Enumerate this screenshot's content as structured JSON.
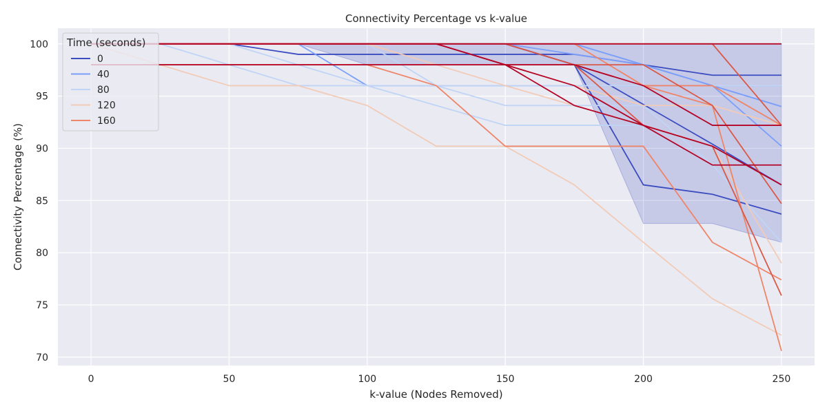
{
  "chart_data": {
    "type": "line",
    "title": "Connectivity Percentage vs k-value",
    "xlabel": "k-value (Nodes Removed)",
    "ylabel": "Connectivity Percentage (%)",
    "xlim": [
      -12,
      262
    ],
    "ylim": [
      69.2,
      101.5
    ],
    "xticks": [
      0,
      50,
      100,
      150,
      200,
      250
    ],
    "yticks": [
      70,
      75,
      80,
      85,
      90,
      95,
      100
    ],
    "grid": true,
    "background": "#eaeaf2",
    "legend": {
      "title": "Time (seconds)",
      "position": "top-left",
      "entries": [
        {
          "label": "0",
          "color": "#3b4cc0"
        },
        {
          "label": "40",
          "color": "#7b9ff9"
        },
        {
          "label": "80",
          "color": "#c0d4f5"
        },
        {
          "label": "120",
          "color": "#f2cbb7"
        },
        {
          "label": "160",
          "color": "#ee8468"
        }
      ]
    },
    "band": {
      "color": "#3b4cc0",
      "opacity": 0.2,
      "upper": [
        [
          0,
          100
        ],
        [
          25,
          100
        ],
        [
          50,
          100
        ],
        [
          75,
          100
        ],
        [
          100,
          100
        ],
        [
          125,
          100
        ],
        [
          150,
          100
        ],
        [
          175,
          100
        ],
        [
          200,
          100
        ],
        [
          225,
          100
        ],
        [
          250,
          100
        ]
      ],
      "lower": [
        [
          0,
          100
        ],
        [
          25,
          100
        ],
        [
          50,
          100
        ],
        [
          75,
          100
        ],
        [
          100,
          98
        ],
        [
          125,
          98
        ],
        [
          150,
          98
        ],
        [
          175,
          98
        ],
        [
          200,
          82.8
        ],
        [
          225,
          82.8
        ],
        [
          250,
          81
        ]
      ]
    },
    "x": [
      0,
      25,
      50,
      75,
      100,
      125,
      150,
      175,
      200,
      225,
      250
    ],
    "series": [
      {
        "color": "#3b4cc0",
        "values": [
          100,
          100,
          100,
          99,
          99,
          99,
          99,
          99,
          98,
          97,
          97
        ]
      },
      {
        "color": "#3b4cc0",
        "values": [
          100,
          100,
          100,
          100,
          100,
          100,
          100,
          98,
          94.2,
          90.4,
          86.5
        ]
      },
      {
        "color": "#3b4cc0",
        "values": [
          100,
          100,
          100,
          100,
          100,
          100,
          100,
          98,
          86.5,
          85.6,
          83.7
        ]
      },
      {
        "color": "#7b9ff9",
        "values": [
          100,
          100,
          100,
          100,
          100,
          100,
          100,
          99,
          98,
          96,
          96
        ]
      },
      {
        "color": "#7b9ff9",
        "values": [
          100,
          100,
          100,
          100,
          100,
          100,
          100,
          100,
          98,
          96,
          94
        ]
      },
      {
        "color": "#7b9ff9",
        "values": [
          100,
          100,
          100,
          100,
          100,
          100,
          100,
          100,
          98,
          96,
          90.2
        ]
      },
      {
        "color": "#7b9ff9",
        "values": [
          100,
          100,
          100,
          100,
          96,
          96,
          96,
          96,
          96,
          96,
          94
        ]
      },
      {
        "color": "#c0d4f5",
        "values": [
          100,
          100,
          100,
          98,
          96,
          96,
          94.1,
          94.1,
          94.1,
          88.4,
          88.4
        ]
      },
      {
        "color": "#c0d4f5",
        "values": [
          100,
          100,
          98,
          96,
          96,
          94.1,
          92.2,
          92.2,
          92.2,
          88.4,
          81
        ]
      },
      {
        "color": "#c0d4f5",
        "values": [
          100,
          100,
          100,
          100,
          100,
          96,
          96,
          96,
          96,
          96,
          96
        ]
      },
      {
        "color": "#f2cbb7",
        "values": [
          100,
          98,
          96,
          96,
          94.1,
          90.2,
          90.2,
          86.5,
          81,
          75.6,
          72.1
        ]
      },
      {
        "color": "#f2cbb7",
        "values": [
          98,
          98,
          98,
          98,
          98,
          98,
          96,
          94.1,
          92.2,
          90.2,
          79
        ]
      },
      {
        "color": "#f2cbb7",
        "values": [
          100,
          100,
          100,
          100,
          100,
          98,
          98,
          96,
          94.1,
          94.1,
          92.2
        ]
      },
      {
        "color": "#ee8468",
        "values": [
          98,
          98,
          98,
          98,
          98,
          96,
          90.2,
          90.2,
          90.2,
          81,
          77.4
        ]
      },
      {
        "color": "#ee8468",
        "values": [
          100,
          100,
          100,
          100,
          100,
          100,
          100,
          100,
          96,
          96,
          92.2
        ]
      },
      {
        "color": "#ee8468",
        "values": [
          100,
          100,
          100,
          100,
          100,
          100,
          98,
          98,
          96,
          94.1,
          70.6
        ]
      },
      {
        "color": "#ee8468",
        "values": [
          100,
          100,
          100,
          100,
          100,
          100,
          100,
          100,
          100,
          100,
          100
        ]
      },
      {
        "color": "#d95847",
        "values": [
          100,
          100,
          100,
          100,
          100,
          100,
          100,
          98,
          92.2,
          90.2,
          75.9
        ]
      },
      {
        "color": "#d95847",
        "values": [
          100,
          100,
          100,
          100,
          100,
          100,
          100,
          100,
          100,
          100,
          92.2
        ]
      },
      {
        "color": "#d95847",
        "values": [
          98,
          98,
          98,
          98,
          98,
          98,
          98,
          98,
          98,
          94.1,
          84.7
        ]
      },
      {
        "color": "#b40426",
        "values": [
          100,
          100,
          100,
          100,
          100,
          100,
          98,
          96,
          92.2,
          88.4,
          88.4
        ]
      },
      {
        "color": "#b40426",
        "values": [
          100,
          100,
          100,
          100,
          100,
          100,
          98,
          94.1,
          92.2,
          90.2,
          86.5
        ]
      },
      {
        "color": "#b40426",
        "values": [
          98,
          98,
          98,
          98,
          98,
          98,
          98,
          98,
          96,
          92.2,
          92.2
        ]
      },
      {
        "color": "#b40426",
        "values": [
          100,
          100,
          100,
          100,
          100,
          100,
          100,
          100,
          100,
          100,
          100
        ]
      }
    ]
  }
}
